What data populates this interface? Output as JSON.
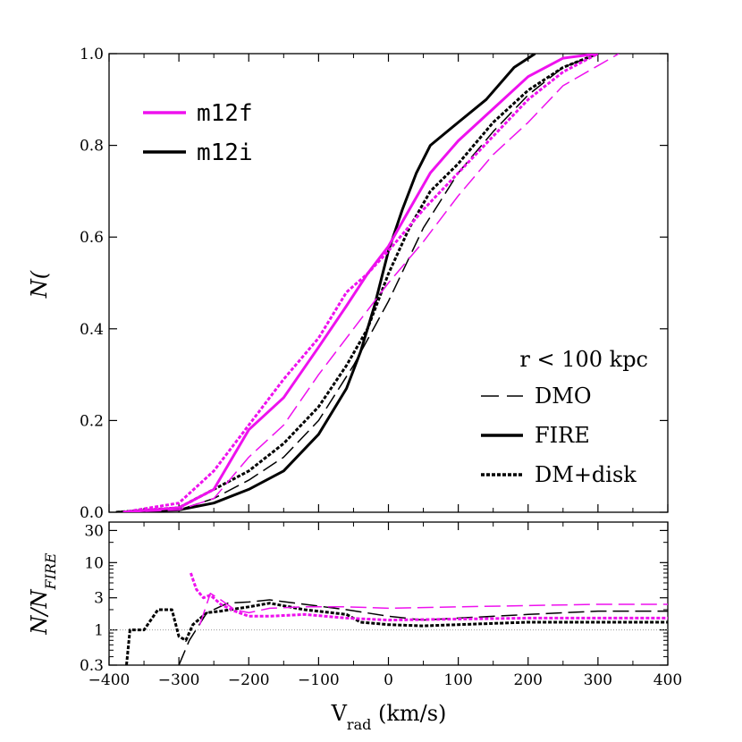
{
  "chart_data": [
    {
      "type": "line",
      "panel": "top",
      "ylabel_html": "N(<V<tspan baseline-shift='sub' font-size='16'>rad</tspan>)/N<tspan baseline-shift='sub' font-size='16'>tot</tspan>",
      "xlim": [
        -400,
        400
      ],
      "ylim": [
        0,
        1.0
      ],
      "yticks": [
        0.0,
        0.2,
        0.4,
        0.6,
        0.8,
        1.0
      ],
      "ytick_labels": [
        "0.0",
        "0.2",
        "0.4",
        "0.6",
        "0.8",
        "1.0"
      ],
      "legend_halos": [
        {
          "label": "m12f",
          "color": "#ee11ee"
        },
        {
          "label": "m12i",
          "color": "#000000"
        }
      ],
      "legend_styles": {
        "title": "r < 100 kpc",
        "entries": [
          {
            "label": "DMO",
            "style": "longdash"
          },
          {
            "label": "FIRE",
            "style": "solid"
          },
          {
            "label": "DM+disk",
            "style": "dotted"
          }
        ]
      },
      "series": [
        {
          "halo": "m12i",
          "style": "solid",
          "color": "#000000",
          "x": [
            -390,
            -300,
            -250,
            -200,
            -150,
            -100,
            -60,
            -40,
            -20,
            0,
            20,
            40,
            60,
            100,
            140,
            180,
            210
          ],
          "y": [
            0,
            0.005,
            0.02,
            0.05,
            0.09,
            0.17,
            0.27,
            0.35,
            0.45,
            0.57,
            0.66,
            0.74,
            0.8,
            0.85,
            0.9,
            0.97,
            1.0
          ]
        },
        {
          "halo": "m12i",
          "style": "dotted",
          "color": "#000000",
          "x": [
            -390,
            -300,
            -250,
            -200,
            -150,
            -100,
            -60,
            -30,
            0,
            30,
            60,
            100,
            150,
            200,
            250,
            300
          ],
          "y": [
            0,
            0.01,
            0.05,
            0.09,
            0.15,
            0.23,
            0.32,
            0.4,
            0.52,
            0.62,
            0.7,
            0.76,
            0.85,
            0.92,
            0.97,
            1.0
          ]
        },
        {
          "halo": "m12i",
          "style": "longdash",
          "color": "#000000",
          "x": [
            -390,
            -300,
            -250,
            -200,
            -150,
            -100,
            -50,
            0,
            50,
            100,
            150,
            200,
            250,
            300
          ],
          "y": [
            0,
            0.005,
            0.03,
            0.07,
            0.12,
            0.2,
            0.32,
            0.46,
            0.62,
            0.74,
            0.83,
            0.91,
            0.97,
            1.0
          ]
        },
        {
          "halo": "m12f",
          "style": "solid",
          "color": "#ee11ee",
          "x": [
            -380,
            -300,
            -250,
            -200,
            -150,
            -100,
            -60,
            -30,
            0,
            30,
            60,
            100,
            150,
            200,
            250,
            300
          ],
          "y": [
            0,
            0.01,
            0.05,
            0.18,
            0.25,
            0.36,
            0.45,
            0.52,
            0.58,
            0.66,
            0.74,
            0.81,
            0.88,
            0.95,
            0.99,
            1.0
          ]
        },
        {
          "halo": "m12f",
          "style": "dotted",
          "color": "#ee11ee",
          "x": [
            -380,
            -300,
            -250,
            -200,
            -150,
            -100,
            -60,
            -30,
            0,
            50,
            100,
            150,
            200,
            250,
            300
          ],
          "y": [
            0,
            0.02,
            0.09,
            0.19,
            0.29,
            0.38,
            0.48,
            0.52,
            0.57,
            0.66,
            0.74,
            0.82,
            0.9,
            0.96,
            1.0
          ]
        },
        {
          "halo": "m12f",
          "style": "longdash",
          "color": "#ee11ee",
          "x": [
            -380,
            -300,
            -250,
            -200,
            -150,
            -100,
            -50,
            0,
            50,
            100,
            150,
            200,
            250,
            330
          ],
          "y": [
            0,
            0.005,
            0.03,
            0.12,
            0.19,
            0.3,
            0.4,
            0.5,
            0.59,
            0.69,
            0.78,
            0.85,
            0.93,
            1.0
          ]
        }
      ]
    },
    {
      "type": "line",
      "panel": "bottom",
      "ylabel_html": "N/N<tspan baseline-shift='sub' font-size='16'>FIRE</tspan>",
      "xlabel_html": "V<tspan baseline-shift='sub' font-size='16'>rad</tspan> (km/s)",
      "xlim": [
        -400,
        400
      ],
      "ylim": [
        0.3,
        40
      ],
      "yscale": "log",
      "yticks": [
        0.3,
        1,
        3,
        10,
        30
      ],
      "ytick_labels": [
        "0.3",
        "1",
        "3",
        "10",
        "30"
      ],
      "xticks": [
        -400,
        -300,
        -200,
        -100,
        0,
        100,
        200,
        300,
        400
      ],
      "xtick_labels": [
        "−400",
        "−300",
        "−200",
        "−100",
        "0",
        "100",
        "200",
        "300",
        "400"
      ],
      "reference_line": 1,
      "series": [
        {
          "halo": "m12i",
          "style": "dotted",
          "color": "#000000",
          "x": [
            -375,
            -370,
            -350,
            -330,
            -310,
            -300,
            -290,
            -280,
            -260,
            -240,
            -200,
            -170,
            -120,
            -60,
            -40,
            0,
            50,
            100,
            200,
            300,
            400
          ],
          "y": [
            0.3,
            1,
            1,
            2,
            2,
            0.8,
            0.7,
            1.2,
            1.8,
            1.9,
            2.2,
            2.5,
            2.0,
            1.7,
            1.3,
            1.2,
            1.15,
            1.2,
            1.3,
            1.3,
            1.3
          ]
        },
        {
          "halo": "m12i",
          "style": "longdash",
          "color": "#000000",
          "x": [
            -300,
            -285,
            -260,
            -230,
            -200,
            -170,
            -120,
            -60,
            0,
            50,
            100,
            200,
            300,
            400
          ],
          "y": [
            0.3,
            0.7,
            1.8,
            2.5,
            2.6,
            2.8,
            2.4,
            2.0,
            1.6,
            1.4,
            1.5,
            1.7,
            1.9,
            1.9
          ]
        },
        {
          "halo": "m12f",
          "style": "dotted",
          "color": "#ee11ee",
          "x": [
            -283,
            -275,
            -265,
            -255,
            -240,
            -220,
            -200,
            -170,
            -120,
            -60,
            0,
            100,
            200,
            300,
            400
          ],
          "y": [
            7,
            4,
            3,
            3.3,
            2.4,
            1.9,
            1.6,
            1.6,
            1.7,
            1.5,
            1.4,
            1.45,
            1.5,
            1.5,
            1.5
          ]
        },
        {
          "halo": "m12f",
          "style": "longdash",
          "color": "#ee11ee",
          "x": [
            -270,
            -255,
            -240,
            -220,
            -200,
            -170,
            -120,
            -60,
            0,
            100,
            200,
            300,
            400
          ],
          "y": [
            1.2,
            3.5,
            2.8,
            2.0,
            1.8,
            2.1,
            2.2,
            2.2,
            2.1,
            2.2,
            2.3,
            2.4,
            2.4
          ]
        }
      ]
    }
  ]
}
